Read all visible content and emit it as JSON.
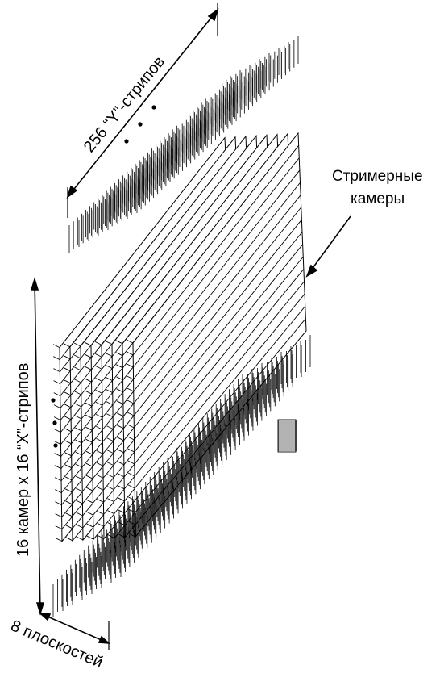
{
  "diagram": {
    "labels": {
      "y_strips": "256 “Y”-стрипов",
      "x_strips": "16 камер x 16 “X”-стрипов",
      "planes": "8 плоскостей",
      "chambers_line1": "Стримерные",
      "chambers_line2": "камеры"
    },
    "counts": {
      "planes": 8,
      "chambers_per_plane": 16
    },
    "colors": {
      "ink": "#000000",
      "paper": "#ffffff"
    }
  }
}
